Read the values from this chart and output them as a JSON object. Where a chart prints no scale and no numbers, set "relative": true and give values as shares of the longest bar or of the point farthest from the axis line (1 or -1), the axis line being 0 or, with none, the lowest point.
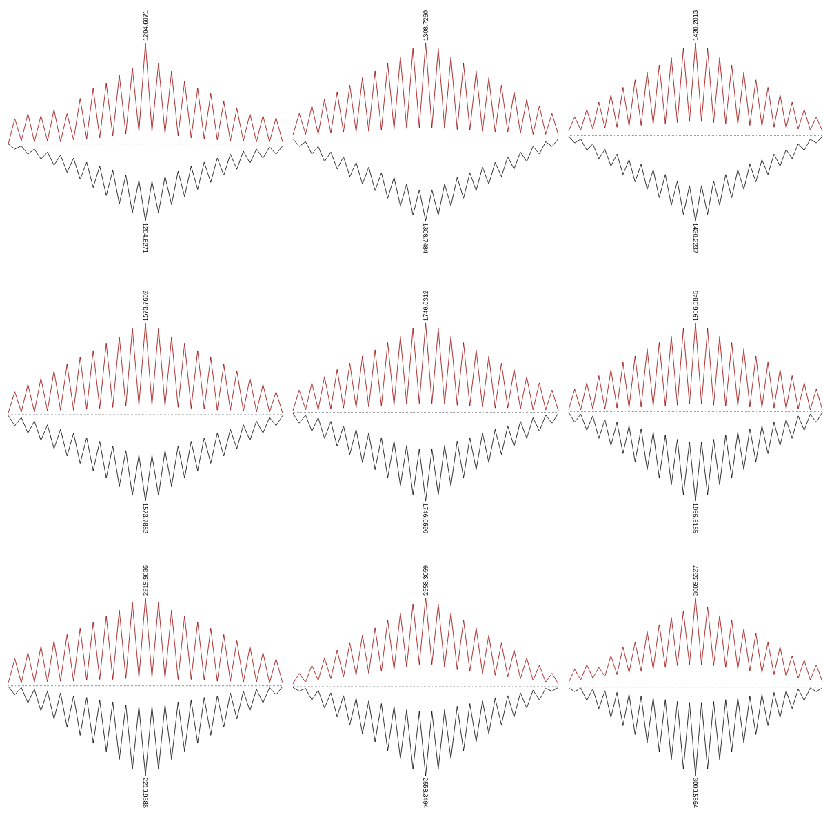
{
  "chart_data": [
    {
      "type": "line",
      "relative": true,
      "categories": [
        null,
        null,
        null,
        null,
        null,
        null,
        null,
        null,
        null,
        null,
        null,
        null,
        null,
        null,
        null,
        null,
        null,
        null,
        null,
        null,
        null,
        null,
        null,
        null,
        null,
        null,
        null,
        null,
        null,
        null,
        null,
        null,
        null,
        null,
        null,
        null,
        null,
        null,
        null,
        null,
        null,
        null,
        null
      ],
      "series": [
        {
          "color": "#990000",
          "values": [
            0,
            0.25,
            0.03,
            0.3,
            0.02,
            0.28,
            0.03,
            0.34,
            0.02,
            0.3,
            0.04,
            0.45,
            0.05,
            0.55,
            0.06,
            0.6,
            0.08,
            0.68,
            0.1,
            0.75,
            0.12,
            1,
            0.12,
            0.8,
            0.1,
            0.72,
            0.08,
            0.62,
            0.06,
            0.55,
            0.05,
            0.5,
            0.04,
            0.42,
            0.03,
            0.35,
            0.03,
            0.3,
            0.02,
            0.28,
            0.02,
            0.26,
            0.02
          ]
        },
        {
          "color": "#000000",
          "values": [
            0,
            -0.05,
            -0.02,
            -0.1,
            -0.05,
            -0.15,
            -0.08,
            -0.21,
            -0.11,
            -0.28,
            -0.14,
            -0.35,
            -0.18,
            -0.43,
            -0.22,
            -0.51,
            -0.26,
            -0.59,
            -0.31,
            -0.68,
            -0.36,
            -0.76,
            -0.37,
            -0.68,
            -0.32,
            -0.6,
            -0.27,
            -0.52,
            -0.22,
            -0.45,
            -0.18,
            -0.38,
            -0.14,
            -0.31,
            -0.1,
            -0.25,
            -0.07,
            -0.19,
            -0.05,
            -0.14,
            -0.03,
            -0.1,
            -0.02
          ]
        }
      ],
      "ref_lines": [
        {
          "axis": "y",
          "value": 0,
          "line_style": "dotted",
          "color": "#000000"
        }
      ],
      "annotations": [
        {
          "text": "1204.6071",
          "y": 1
        },
        {
          "text": "1204.6271",
          "y": -0.76
        }
      ]
    },
    {
      "type": "line",
      "relative": true,
      "categories": [
        null,
        null,
        null,
        null,
        null,
        null,
        null,
        null,
        null,
        null,
        null,
        null,
        null,
        null,
        null,
        null,
        null,
        null,
        null,
        null,
        null,
        null,
        null,
        null,
        null,
        null,
        null,
        null,
        null,
        null,
        null,
        null,
        null,
        null,
        null,
        null,
        null,
        null,
        null,
        null,
        null,
        null,
        null
      ],
      "series": [
        {
          "color": "#990000",
          "values": [
            0.02,
            0.25,
            0.03,
            0.33,
            0.03,
            0.4,
            0.04,
            0.48,
            0.05,
            0.55,
            0.05,
            0.63,
            0.06,
            0.7,
            0.07,
            0.78,
            0.08,
            0.85,
            0.09,
            0.94,
            0.1,
            1,
            0.1,
            0.94,
            0.09,
            0.85,
            0.08,
            0.78,
            0.07,
            0.7,
            0.06,
            0.63,
            0.05,
            0.55,
            0.05,
            0.48,
            0.04,
            0.4,
            0.03,
            0.33,
            0.03,
            0.25,
            0.02
          ]
        },
        {
          "color": "#000000",
          "values": [
            -0.02,
            -0.1,
            -0.05,
            -0.18,
            -0.1,
            -0.26,
            -0.16,
            -0.34,
            -0.21,
            -0.42,
            -0.27,
            -0.5,
            -0.32,
            -0.57,
            -0.38,
            -0.65,
            -0.43,
            -0.73,
            -0.5,
            -0.83,
            -0.56,
            -0.89,
            -0.56,
            -0.83,
            -0.5,
            -0.73,
            -0.43,
            -0.65,
            -0.38,
            -0.57,
            -0.32,
            -0.5,
            -0.27,
            -0.42,
            -0.21,
            -0.34,
            -0.16,
            -0.26,
            -0.1,
            -0.18,
            -0.05,
            -0.1,
            -0.02
          ]
        }
      ],
      "ref_lines": [
        {
          "axis": "y",
          "value": 0,
          "line_style": "dotted",
          "color": "#000000"
        }
      ],
      "annotations": [
        {
          "text": "1308.7260",
          "y": 1
        },
        {
          "text": "1308.7484",
          "y": -0.89
        }
      ]
    },
    {
      "type": "line",
      "relative": true,
      "categories": [
        null,
        null,
        null,
        null,
        null,
        null,
        null,
        null,
        null,
        null,
        null,
        null,
        null,
        null,
        null,
        null,
        null,
        null,
        null,
        null,
        null,
        null,
        null,
        null,
        null,
        null,
        null,
        null,
        null,
        null,
        null,
        null,
        null,
        null,
        null,
        null,
        null,
        null,
        null,
        null,
        null,
        null,
        null
      ],
      "series": [
        {
          "color": "#990000",
          "values": [
            0.05,
            0.2,
            0.06,
            0.28,
            0.07,
            0.36,
            0.08,
            0.44,
            0.09,
            0.52,
            0.1,
            0.6,
            0.11,
            0.68,
            0.12,
            0.76,
            0.13,
            0.84,
            0.14,
            0.94,
            0.15,
            1,
            0.15,
            0.94,
            0.14,
            0.84,
            0.13,
            0.76,
            0.12,
            0.68,
            0.11,
            0.6,
            0.1,
            0.52,
            0.09,
            0.44,
            0.08,
            0.36,
            0.07,
            0.28,
            0.06,
            0.2,
            0.05
          ]
        },
        {
          "color": "#000000",
          "values": [
            -0.01,
            -0.08,
            -0.04,
            -0.16,
            -0.09,
            -0.25,
            -0.15,
            -0.33,
            -0.2,
            -0.42,
            -0.26,
            -0.5,
            -0.31,
            -0.58,
            -0.37,
            -0.67,
            -0.42,
            -0.75,
            -0.49,
            -0.85,
            -0.54,
            -0.92,
            -0.54,
            -0.85,
            -0.49,
            -0.75,
            -0.42,
            -0.67,
            -0.37,
            -0.58,
            -0.31,
            -0.5,
            -0.26,
            -0.42,
            -0.2,
            -0.33,
            -0.15,
            -0.25,
            -0.09,
            -0.16,
            -0.04,
            -0.08,
            -0.01
          ]
        }
      ],
      "ref_lines": [
        {
          "axis": "y",
          "value": 0,
          "line_style": "dotted",
          "color": "#000000"
        }
      ],
      "annotations": [
        {
          "text": "1430.2013",
          "y": 1
        },
        {
          "text": "1430.2237",
          "y": -0.92
        }
      ]
    },
    {
      "type": "line",
      "relative": true,
      "categories": [
        null,
        null,
        null,
        null,
        null,
        null,
        null,
        null,
        null,
        null,
        null,
        null,
        null,
        null,
        null,
        null,
        null,
        null,
        null,
        null,
        null,
        null,
        null,
        null,
        null,
        null,
        null,
        null,
        null,
        null,
        null,
        null,
        null,
        null,
        null,
        null,
        null,
        null,
        null,
        null,
        null,
        null,
        null
      ],
      "series": [
        {
          "color": "#990000",
          "values": [
            0.02,
            0.25,
            0.03,
            0.33,
            0.03,
            0.4,
            0.04,
            0.48,
            0.05,
            0.55,
            0.05,
            0.63,
            0.06,
            0.7,
            0.07,
            0.78,
            0.08,
            0.85,
            0.09,
            0.94,
            0.1,
            1,
            0.1,
            0.94,
            0.09,
            0.85,
            0.08,
            0.78,
            0.07,
            0.7,
            0.06,
            0.63,
            0.05,
            0.55,
            0.05,
            0.48,
            0.04,
            0.4,
            0.03,
            0.33,
            0.03,
            0.25,
            0.02
          ]
        },
        {
          "color": "#000000",
          "values": [
            -0.01,
            -0.12,
            -0.03,
            -0.2,
            -0.07,
            -0.28,
            -0.11,
            -0.37,
            -0.16,
            -0.45,
            -0.2,
            -0.53,
            -0.25,
            -0.61,
            -0.29,
            -0.69,
            -0.34,
            -0.78,
            -0.39,
            -0.88,
            -0.44,
            -0.94,
            -0.44,
            -0.88,
            -0.39,
            -0.78,
            -0.34,
            -0.69,
            -0.29,
            -0.61,
            -0.25,
            -0.53,
            -0.2,
            -0.45,
            -0.16,
            -0.37,
            -0.11,
            -0.28,
            -0.07,
            -0.2,
            -0.03,
            -0.12,
            -0.01
          ]
        }
      ],
      "ref_lines": [
        {
          "axis": "y",
          "value": 0,
          "line_style": "dotted",
          "color": "#000000"
        }
      ],
      "annotations": [
        {
          "text": "1573.7602",
          "y": 1
        },
        {
          "text": "1573.7852",
          "y": -0.94
        }
      ]
    },
    {
      "type": "line",
      "relative": true,
      "categories": [
        null,
        null,
        null,
        null,
        null,
        null,
        null,
        null,
        null,
        null,
        null,
        null,
        null,
        null,
        null,
        null,
        null,
        null,
        null,
        null,
        null,
        null,
        null,
        null,
        null,
        null,
        null,
        null,
        null,
        null,
        null,
        null,
        null,
        null,
        null,
        null,
        null,
        null,
        null,
        null,
        null,
        null,
        null
      ],
      "series": [
        {
          "color": "#990000",
          "values": [
            0.02,
            0.25,
            0.03,
            0.33,
            0.03,
            0.4,
            0.04,
            0.48,
            0.05,
            0.55,
            0.05,
            0.63,
            0.06,
            0.7,
            0.07,
            0.78,
            0.08,
            0.85,
            0.09,
            0.94,
            0.1,
            1,
            0.1,
            0.94,
            0.09,
            0.85,
            0.08,
            0.78,
            0.07,
            0.7,
            0.06,
            0.63,
            0.05,
            0.55,
            0.05,
            0.48,
            0.04,
            0.4,
            0.03,
            0.33,
            0.03,
            0.25,
            0.02
          ]
        },
        {
          "color": "#000000",
          "values": [
            -0.01,
            -0.12,
            -0.03,
            -0.21,
            -0.06,
            -0.29,
            -0.1,
            -0.38,
            -0.15,
            -0.47,
            -0.19,
            -0.56,
            -0.23,
            -0.64,
            -0.28,
            -0.73,
            -0.32,
            -0.82,
            -0.37,
            -0.92,
            -0.41,
            -0.99,
            -0.41,
            -0.92,
            -0.37,
            -0.82,
            -0.32,
            -0.73,
            -0.28,
            -0.64,
            -0.23,
            -0.56,
            -0.19,
            -0.47,
            -0.15,
            -0.38,
            -0.1,
            -0.29,
            -0.06,
            -0.21,
            -0.03,
            -0.12,
            -0.01
          ]
        }
      ],
      "ref_lines": [
        {
          "axis": "y",
          "value": 0,
          "line_style": "dotted",
          "color": "#000000"
        }
      ],
      "annotations": [
        {
          "text": "1746.0312",
          "y": 1
        },
        {
          "text": "1746.0590",
          "y": -0.99
        }
      ]
    },
    {
      "type": "line",
      "relative": true,
      "categories": [
        null,
        null,
        null,
        null,
        null,
        null,
        null,
        null,
        null,
        null,
        null,
        null,
        null,
        null,
        null,
        null,
        null,
        null,
        null,
        null,
        null,
        null,
        null,
        null,
        null,
        null,
        null,
        null,
        null,
        null,
        null,
        null,
        null,
        null,
        null,
        null,
        null,
        null,
        null,
        null,
        null,
        null,
        null
      ],
      "series": [
        {
          "color": "#990000",
          "values": [
            0.02,
            0.25,
            0.02,
            0.32,
            0.03,
            0.4,
            0.03,
            0.47,
            0.04,
            0.55,
            0.04,
            0.62,
            0.05,
            0.7,
            0.06,
            0.77,
            0.06,
            0.84,
            0.07,
            0.93,
            0.08,
            0.99,
            0.08,
            0.93,
            0.07,
            0.84,
            0.06,
            0.77,
            0.06,
            0.7,
            0.05,
            0.62,
            0.04,
            0.55,
            0.04,
            0.47,
            0.03,
            0.4,
            0.03,
            0.32,
            0.02,
            0.25,
            0.02
          ]
        },
        {
          "color": "#000000",
          "values": [
            -0.01,
            -0.12,
            -0.03,
            -0.21,
            -0.05,
            -0.3,
            -0.09,
            -0.38,
            -0.12,
            -0.47,
            -0.16,
            -0.56,
            -0.19,
            -0.65,
            -0.23,
            -0.74,
            -0.26,
            -0.82,
            -0.31,
            -0.93,
            -0.34,
            -1,
            -0.34,
            -0.93,
            -0.31,
            -0.82,
            -0.26,
            -0.74,
            -0.23,
            -0.65,
            -0.19,
            -0.56,
            -0.16,
            -0.47,
            -0.12,
            -0.38,
            -0.09,
            -0.3,
            -0.05,
            -0.21,
            -0.03,
            -0.12,
            -0.01
          ]
        }
      ],
      "ref_lines": [
        {
          "axis": "y",
          "value": 0,
          "line_style": "dotted",
          "color": "#000000"
        }
      ],
      "annotations": [
        {
          "text": "1956.5845",
          "y": 0.99
        },
        {
          "text": "1956.6155",
          "y": -1
        }
      ]
    },
    {
      "type": "line",
      "relative": true,
      "categories": [
        null,
        null,
        null,
        null,
        null,
        null,
        null,
        null,
        null,
        null,
        null,
        null,
        null,
        null,
        null,
        null,
        null,
        null,
        null,
        null,
        null,
        null,
        null,
        null,
        null,
        null,
        null,
        null,
        null,
        null,
        null,
        null,
        null,
        null,
        null,
        null,
        null,
        null,
        null,
        null,
        null,
        null,
        null
      ],
      "series": [
        {
          "color": "#990000",
          "values": [
            0.03,
            0.3,
            0.03,
            0.37,
            0.04,
            0.44,
            0.04,
            0.5,
            0.05,
            0.57,
            0.05,
            0.64,
            0.06,
            0.71,
            0.07,
            0.78,
            0.07,
            0.84,
            0.08,
            0.93,
            0.09,
            0.98,
            0.09,
            0.93,
            0.08,
            0.84,
            0.07,
            0.78,
            0.07,
            0.71,
            0.06,
            0.64,
            0.05,
            0.57,
            0.05,
            0.5,
            0.04,
            0.44,
            0.04,
            0.37,
            0.03,
            0.3,
            0.03
          ]
        },
        {
          "color": "#000000",
          "values": [
            -0.01,
            -0.1,
            -0.02,
            -0.19,
            -0.04,
            -0.28,
            -0.06,
            -0.37,
            -0.08,
            -0.46,
            -0.11,
            -0.55,
            -0.13,
            -0.64,
            -0.16,
            -0.73,
            -0.18,
            -0.82,
            -0.21,
            -0.93,
            -0.23,
            -1,
            -0.23,
            -0.93,
            -0.21,
            -0.82,
            -0.18,
            -0.73,
            -0.16,
            -0.64,
            -0.13,
            -0.55,
            -0.11,
            -0.46,
            -0.08,
            -0.37,
            -0.06,
            -0.28,
            -0.04,
            -0.19,
            -0.02,
            -0.1,
            -0.01
          ]
        }
      ],
      "ref_lines": [
        {
          "axis": "y",
          "value": 0,
          "line_style": "dotted",
          "color": "#000000"
        }
      ],
      "annotations": [
        {
          "text": "2219.9036",
          "y": 0.98
        },
        {
          "text": "2219.9386",
          "y": -1
        }
      ]
    },
    {
      "type": "line",
      "relative": true,
      "categories": [
        null,
        null,
        null,
        null,
        null,
        null,
        null,
        null,
        null,
        null,
        null,
        null,
        null,
        null,
        null,
        null,
        null,
        null,
        null,
        null,
        null,
        null,
        null,
        null,
        null,
        null,
        null,
        null,
        null,
        null,
        null,
        null,
        null,
        null,
        null,
        null,
        null,
        null,
        null,
        null,
        null,
        null,
        null
      ],
      "series": [
        {
          "color": "#990000",
          "values": [
            0.03,
            0.15,
            0.05,
            0.24,
            0.07,
            0.32,
            0.09,
            0.41,
            0.11,
            0.49,
            0.13,
            0.58,
            0.15,
            0.66,
            0.17,
            0.75,
            0.19,
            0.83,
            0.22,
            0.93,
            0.25,
            1,
            0.25,
            0.93,
            0.22,
            0.83,
            0.19,
            0.75,
            0.17,
            0.66,
            0.15,
            0.58,
            0.13,
            0.49,
            0.11,
            0.41,
            0.09,
            0.32,
            0.07,
            0.24,
            0.05,
            0.15,
            0.03
          ]
        },
        {
          "color": "#000000",
          "values": [
            -0.01,
            -0.05,
            -0.02,
            -0.15,
            -0.04,
            -0.24,
            -0.07,
            -0.34,
            -0.1,
            -0.43,
            -0.13,
            -0.53,
            -0.16,
            -0.62,
            -0.19,
            -0.72,
            -0.22,
            -0.81,
            -0.26,
            -0.93,
            -0.28,
            -1,
            -0.28,
            -0.93,
            -0.26,
            -0.81,
            -0.22,
            -0.72,
            -0.19,
            -0.62,
            -0.16,
            -0.53,
            -0.13,
            -0.43,
            -0.1,
            -0.34,
            -0.07,
            -0.24,
            -0.04,
            -0.15,
            -0.02,
            -0.05,
            -0.01
          ]
        }
      ],
      "ref_lines": [
        {
          "axis": "y",
          "value": 0,
          "line_style": "dotted",
          "color": "#000000"
        }
      ],
      "annotations": [
        {
          "text": "2558.3059",
          "y": 1
        },
        {
          "text": "2558.3494",
          "y": -1
        }
      ]
    },
    {
      "type": "line",
      "relative": true,
      "categories": [
        null,
        null,
        null,
        null,
        null,
        null,
        null,
        null,
        null,
        null,
        null,
        null,
        null,
        null,
        null,
        null,
        null,
        null,
        null,
        null,
        null,
        null,
        null,
        null,
        null,
        null,
        null,
        null,
        null,
        null,
        null,
        null,
        null,
        null,
        null,
        null,
        null,
        null,
        null,
        null,
        null,
        null,
        null
      ],
      "series": [
        {
          "color": "#990000",
          "values": [
            0.05,
            0.2,
            0.08,
            0.25,
            0.1,
            0.22,
            0.12,
            0.35,
            0.14,
            0.45,
            0.16,
            0.5,
            0.18,
            0.62,
            0.2,
            0.7,
            0.22,
            0.78,
            0.24,
            0.85,
            0.25,
            1,
            0.25,
            0.9,
            0.24,
            0.8,
            0.22,
            0.75,
            0.2,
            0.65,
            0.18,
            0.6,
            0.16,
            0.5,
            0.14,
            0.45,
            0.12,
            0.35,
            0.1,
            0.3,
            0.08,
            0.25,
            0.06
          ]
        },
        {
          "color": "#000000",
          "values": [
            -0.01,
            -0.05,
            -0.01,
            -0.15,
            -0.02,
            -0.24,
            -0.04,
            -0.34,
            -0.06,
            -0.43,
            -0.08,
            -0.53,
            -0.1,
            -0.62,
            -0.12,
            -0.72,
            -0.14,
            -0.81,
            -0.16,
            -0.92,
            -0.17,
            -0.99,
            -0.17,
            -0.92,
            -0.16,
            -0.81,
            -0.14,
            -0.72,
            -0.12,
            -0.62,
            -0.1,
            -0.53,
            -0.08,
            -0.43,
            -0.06,
            -0.34,
            -0.04,
            -0.24,
            -0.02,
            -0.15,
            -0.01,
            -0.05,
            -0.01
          ]
        }
      ],
      "ref_lines": [
        {
          "axis": "y",
          "value": 0,
          "line_style": "dotted",
          "color": "#000000"
        }
      ],
      "annotations": [
        {
          "text": "3009.5327",
          "y": 1
        },
        {
          "text": "3009.5664",
          "y": -0.99
        }
      ]
    }
  ]
}
